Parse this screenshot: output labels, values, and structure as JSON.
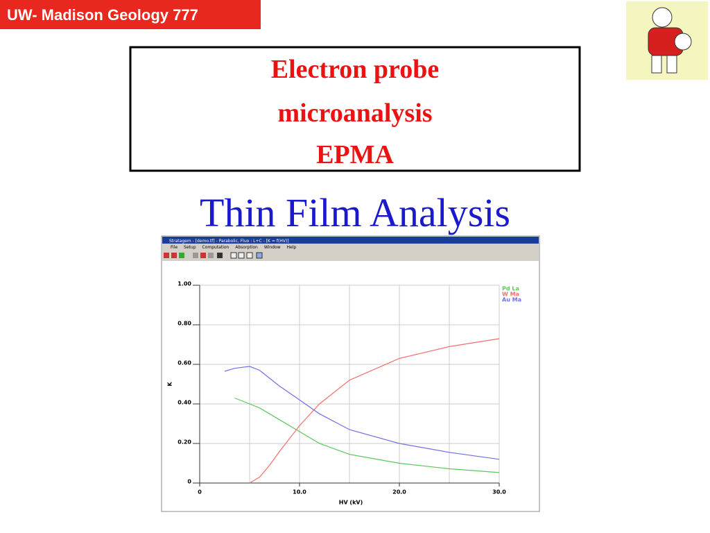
{
  "header": {
    "title": "UW- Madison Geology  777"
  },
  "slide": {
    "title_lines": [
      "Electron probe",
      "microanalysis",
      "EPMA"
    ],
    "subtitle": "Thin Film Analysis"
  },
  "window": {
    "title": "Stratagem - [demo.tf] - Parabolic, Fluo : L+C - [K = f(HV)]",
    "menu": [
      "File",
      "Setup",
      "Computation",
      "Absorption",
      "Window",
      "Help"
    ]
  },
  "chart_data": {
    "type": "line",
    "xlabel": "HV (kV)",
    "ylabel": "K",
    "x": [
      2.5,
      3.5,
      5,
      6,
      7,
      8,
      10,
      12,
      15,
      20,
      25,
      30
    ],
    "series": [
      {
        "name": "Pd La",
        "color": "#5cc65c",
        "values": [
          null,
          0.43,
          0.4,
          0.38,
          0.35,
          0.32,
          0.26,
          0.2,
          0.145,
          0.1,
          0.072,
          0.053
        ]
      },
      {
        "name": "W Ma",
        "color": "#f07070",
        "values": [
          null,
          null,
          0,
          0.03,
          0.09,
          0.16,
          0.29,
          0.4,
          0.52,
          0.63,
          0.69,
          0.73
        ]
      },
      {
        "name": "Au Ma",
        "color": "#6f6fe6",
        "values": [
          0.565,
          0.58,
          0.59,
          0.57,
          0.53,
          0.49,
          0.42,
          0.35,
          0.27,
          0.2,
          0.155,
          0.12
        ]
      }
    ],
    "xlim": [
      0,
      30
    ],
    "ylim": [
      0,
      1
    ],
    "xticks": [
      0,
      {
        "value": 10,
        "label": "10.0"
      },
      {
        "value": 20,
        "label": "20.0"
      },
      {
        "value": 30,
        "label": "30.0"
      }
    ],
    "yticks": [
      0,
      {
        "value": 0.2,
        "label": "0.20"
      },
      {
        "value": 0.4,
        "label": "0.40"
      },
      {
        "value": 0.6,
        "label": "0.60"
      },
      {
        "value": 0.8,
        "label": "0.80"
      },
      {
        "value": 1,
        "label": "1.00"
      }
    ],
    "grid": true
  }
}
